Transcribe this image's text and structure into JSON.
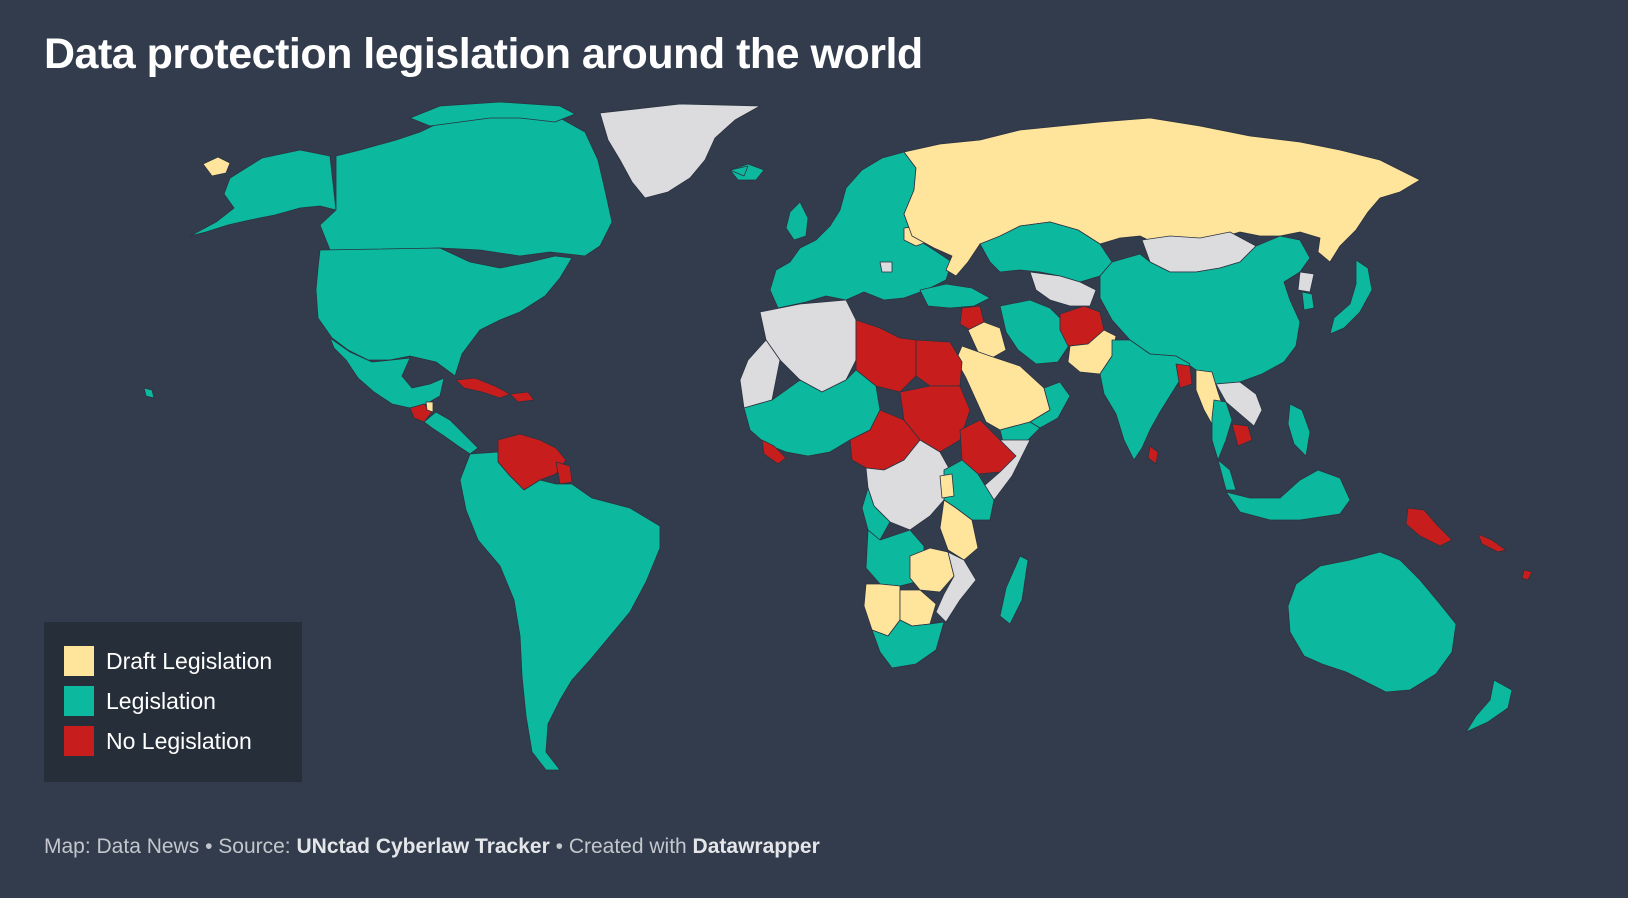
{
  "title": "Data protection legislation around the world",
  "colors": {
    "background": "#323c4c",
    "draft": "#ffe49c",
    "legislation": "#0cb89e",
    "none": "#c81d1d",
    "no_data": "#dcdcde",
    "borders": "#2b3340"
  },
  "legend": {
    "items": [
      {
        "label": "Draft Legislation",
        "color": "#ffe49c"
      },
      {
        "label": "Legislation",
        "color": "#0cb89e"
      },
      {
        "label": "No Legislation",
        "color": "#c81d1d"
      }
    ]
  },
  "footer": {
    "map_prefix": "Map: Data News",
    "separator": " • ",
    "source_prefix": "Source: ",
    "source_name": "UNctad Cyberlaw Tracker",
    "created_prefix": "Created with ",
    "created_tool": "Datawrapper"
  }
}
